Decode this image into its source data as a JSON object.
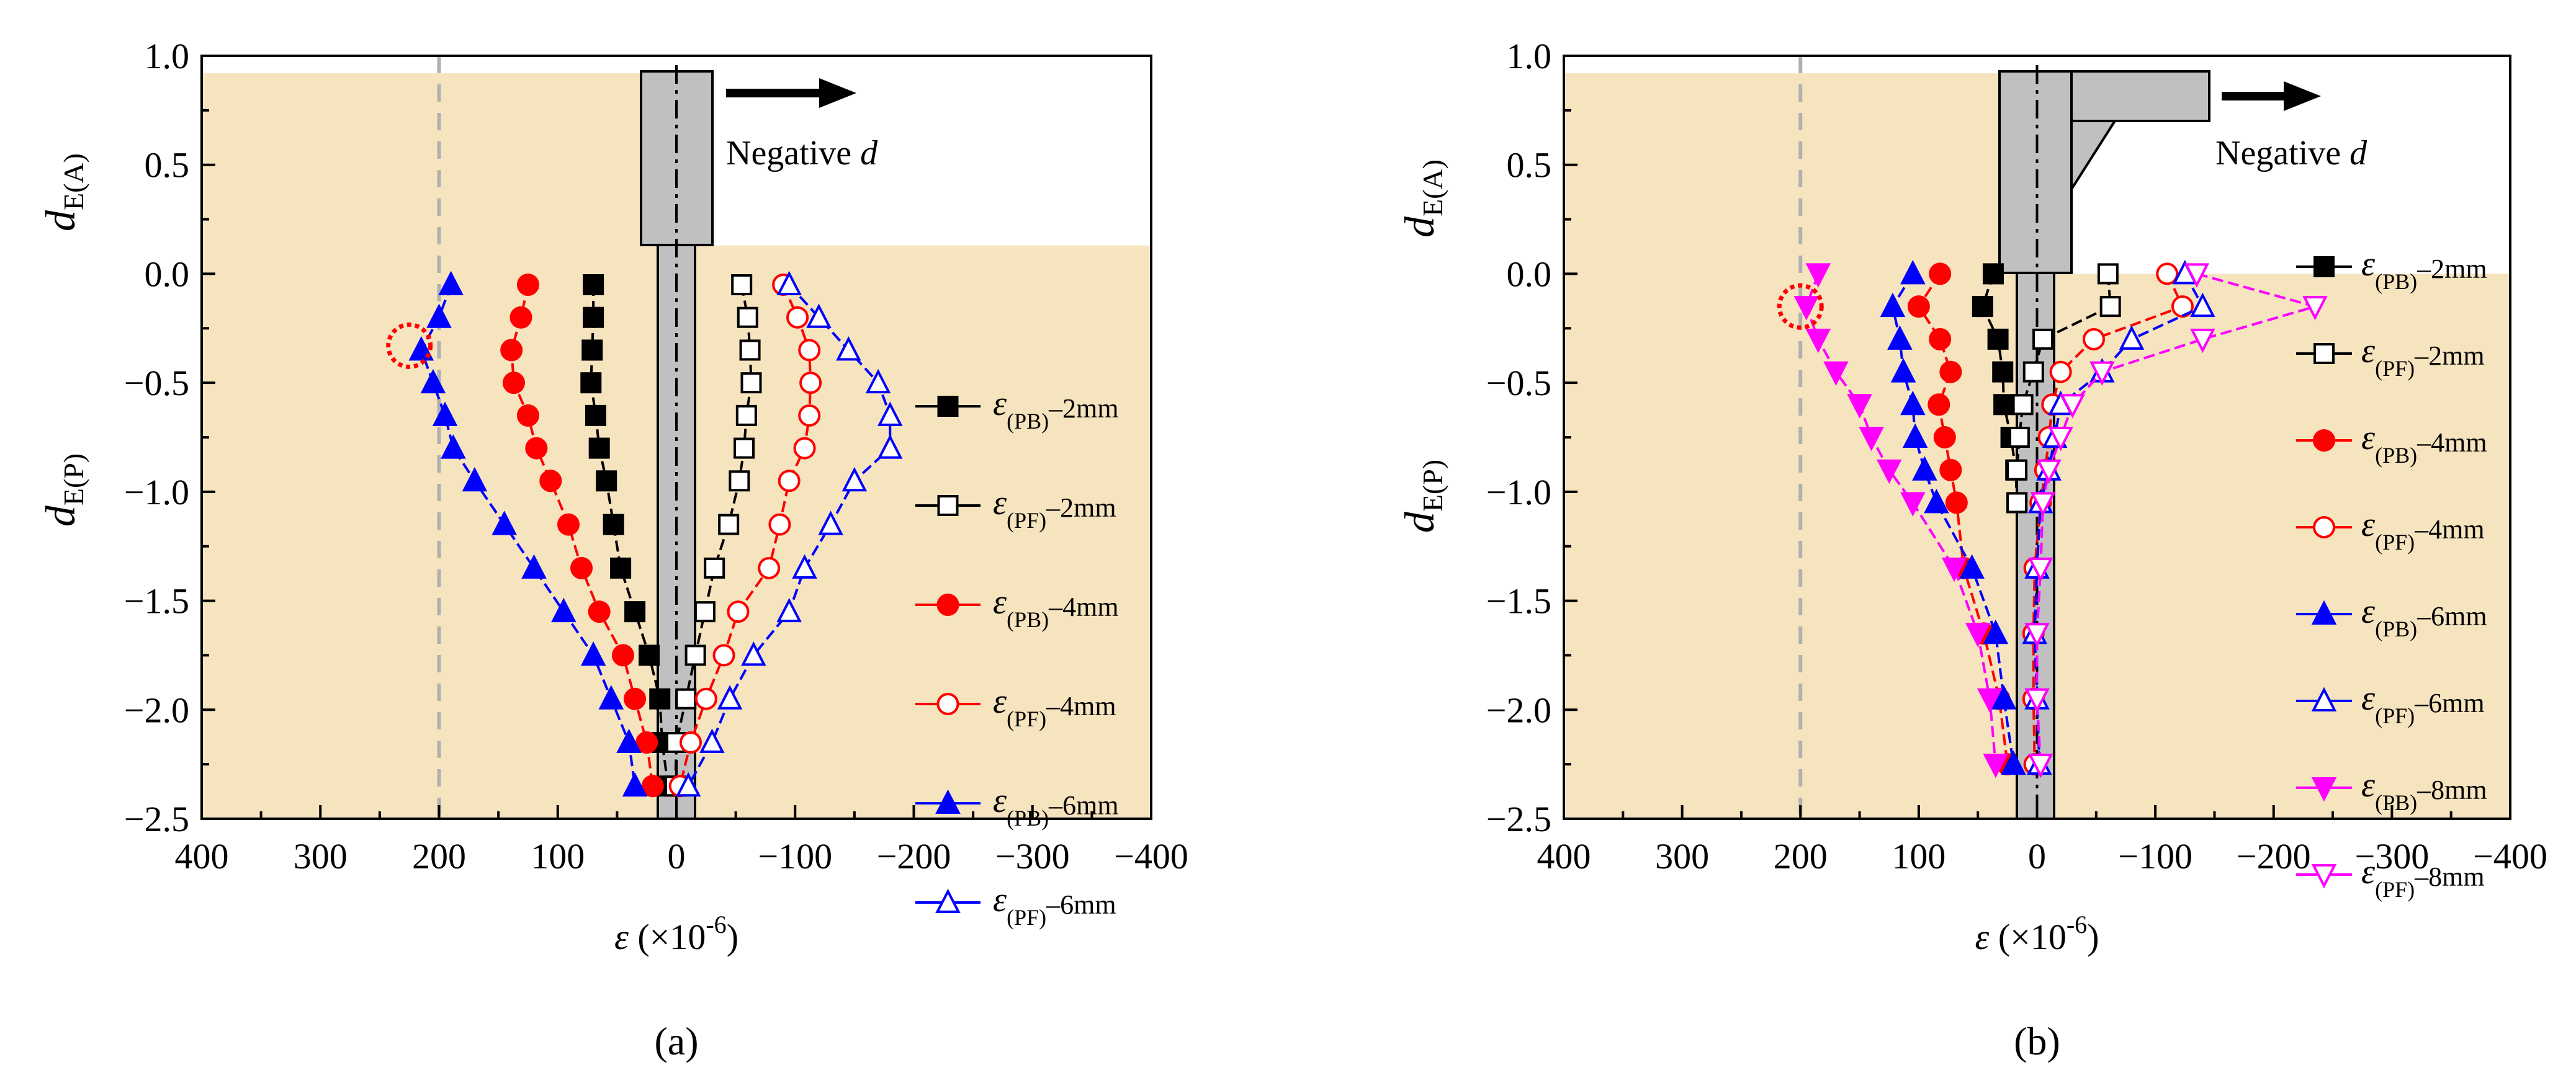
{
  "figure": {
    "panel_labels": [
      "(a)",
      "(b)"
    ],
    "negative_label": "Negative",
    "negative_var": "d",
    "y_label_top_main": "d",
    "y_label_top_sub": "E(A)",
    "y_label_bottom_main": "d",
    "y_label_bottom_sub": "E(P)",
    "x_label": "ε (×10",
    "x_label_exp": "-6",
    "x_label_close": ")",
    "legend_symbol": "ε",
    "colors": {
      "shade": "#f6e4bf",
      "column": "#c0c0c0",
      "threshold_line": "#b0b0b0",
      "circle_marker": "#ff0000"
    }
  },
  "chart_data": [
    {
      "id": "a",
      "type": "scatter",
      "title": "(a)",
      "xlabel": "ε (×10-6)",
      "ylabel_top": "dE(A)",
      "ylabel_bottom": "dE(P)",
      "xlim": [
        400,
        -400
      ],
      "ylim": [
        -2.5,
        1.0
      ],
      "x_ticks": [
        400,
        300,
        200,
        100,
        0,
        -100,
        -200,
        -300,
        -400
      ],
      "x_tick_labels": [
        "400",
        "300",
        "200",
        "100",
        "0",
        "−100",
        "−200",
        "−300",
        "−400"
      ],
      "y_ticks": [
        1.0,
        0.5,
        0.0,
        -0.5,
        -1.0,
        -1.5,
        -2.0,
        -2.5
      ],
      "y_tick_labels": [
        "1.0",
        "0.5",
        "0.0",
        "−0.5",
        "−1.0",
        "−1.5",
        "−2.0",
        "−2.5"
      ],
      "threshold_x": 200,
      "highlight_circle": {
        "x": 225,
        "y": -0.33
      },
      "series": [
        {
          "name": "ε(PB)–2mm",
          "label_sub": "(PB)",
          "label_tail": "–2mm",
          "color": "#000000",
          "marker": "square",
          "filled": true,
          "points": [
            [
              70,
              -0.05
            ],
            [
              70,
              -0.2
            ],
            [
              71,
              -0.35
            ],
            [
              72,
              -0.5
            ],
            [
              68,
              -0.65
            ],
            [
              65,
              -0.8
            ],
            [
              59,
              -0.95
            ],
            [
              53,
              -1.15
            ],
            [
              47,
              -1.35
            ],
            [
              35,
              -1.55
            ],
            [
              23,
              -1.75
            ],
            [
              14,
              -1.95
            ],
            [
              12,
              -2.15
            ],
            [
              7,
              -2.35
            ]
          ]
        },
        {
          "name": "ε(PF)–2mm",
          "label_sub": "(PF)",
          "label_tail": "–2mm",
          "color": "#000000",
          "marker": "square",
          "filled": false,
          "points": [
            [
              -55,
              -0.05
            ],
            [
              -60,
              -0.2
            ],
            [
              -62,
              -0.35
            ],
            [
              -63,
              -0.5
            ],
            [
              -59,
              -0.65
            ],
            [
              -57,
              -0.8
            ],
            [
              -53,
              -0.95
            ],
            [
              -44,
              -1.15
            ],
            [
              -32,
              -1.35
            ],
            [
              -24,
              -1.55
            ],
            [
              -16,
              -1.75
            ],
            [
              -8,
              -1.95
            ],
            [
              0,
              -2.15
            ],
            [
              1,
              -2.35
            ]
          ]
        },
        {
          "name": "ε(PB)–4mm",
          "label_sub": "(PB)",
          "label_tail": "–4mm",
          "color": "#ff0000",
          "marker": "circle",
          "filled": true,
          "points": [
            [
              125,
              -0.05
            ],
            [
              131,
              -0.2
            ],
            [
              139,
              -0.35
            ],
            [
              137,
              -0.5
            ],
            [
              125,
              -0.65
            ],
            [
              118,
              -0.8
            ],
            [
              106,
              -0.95
            ],
            [
              91,
              -1.15
            ],
            [
              80,
              -1.35
            ],
            [
              65,
              -1.55
            ],
            [
              45,
              -1.75
            ],
            [
              35,
              -1.95
            ],
            [
              25,
              -2.15
            ],
            [
              20,
              -2.35
            ]
          ]
        },
        {
          "name": "ε(PF)–4mm",
          "label_sub": "(PF)",
          "label_tail": "–4mm",
          "color": "#ff0000",
          "marker": "circle",
          "filled": false,
          "points": [
            [
              -90,
              -0.05
            ],
            [
              -102,
              -0.2
            ],
            [
              -112,
              -0.35
            ],
            [
              -113,
              -0.5
            ],
            [
              -112,
              -0.65
            ],
            [
              -108,
              -0.8
            ],
            [
              -95,
              -0.95
            ],
            [
              -87,
              -1.15
            ],
            [
              -78,
              -1.35
            ],
            [
              -52,
              -1.55
            ],
            [
              -40,
              -1.75
            ],
            [
              -25,
              -1.95
            ],
            [
              -12,
              -2.15
            ],
            [
              -3,
              -2.35
            ]
          ]
        },
        {
          "name": "ε(PB)–6mm",
          "label_sub": "(PB)",
          "label_tail": "–6mm",
          "color": "#0000ff",
          "marker": "triangle",
          "filled": true,
          "points": [
            [
              190,
              -0.05
            ],
            [
              200,
              -0.2
            ],
            [
              215,
              -0.35
            ],
            [
              205,
              -0.5
            ],
            [
              195,
              -0.65
            ],
            [
              188,
              -0.8
            ],
            [
              170,
              -0.95
            ],
            [
              145,
              -1.15
            ],
            [
              120,
              -1.35
            ],
            [
              95,
              -1.55
            ],
            [
              70,
              -1.75
            ],
            [
              55,
              -1.95
            ],
            [
              40,
              -2.15
            ],
            [
              35,
              -2.35
            ]
          ]
        },
        {
          "name": "ε(PF)–6mm",
          "label_sub": "(PF)",
          "label_tail": "–6mm",
          "color": "#0000ff",
          "marker": "triangle",
          "filled": false,
          "points": [
            [
              -95,
              -0.05
            ],
            [
              -120,
              -0.2
            ],
            [
              -145,
              -0.35
            ],
            [
              -170,
              -0.5
            ],
            [
              -180,
              -0.65
            ],
            [
              -180,
              -0.8
            ],
            [
              -150,
              -0.95
            ],
            [
              -130,
              -1.15
            ],
            [
              -108,
              -1.35
            ],
            [
              -95,
              -1.55
            ],
            [
              -65,
              -1.75
            ],
            [
              -45,
              -1.95
            ],
            [
              -30,
              -2.15
            ],
            [
              -10,
              -2.35
            ]
          ]
        }
      ]
    },
    {
      "id": "b",
      "type": "scatter",
      "title": "(b)",
      "xlabel": "ε (×10-6)",
      "ylabel_top": "dE(A)",
      "ylabel_bottom": "dE(P)",
      "xlim": [
        400,
        -400
      ],
      "ylim": [
        -2.5,
        1.0
      ],
      "x_ticks": [
        400,
        300,
        200,
        100,
        0,
        -100,
        -200,
        -300,
        -400
      ],
      "x_tick_labels": [
        "400",
        "300",
        "200",
        "100",
        "0",
        "−100",
        "−200",
        "−300",
        "−400"
      ],
      "y_ticks": [
        1.0,
        0.5,
        0.0,
        -0.5,
        -1.0,
        -1.5,
        -2.0,
        -2.5
      ],
      "y_tick_labels": [
        "1.0",
        "0.5",
        "0.0",
        "−0.5",
        "−1.0",
        "−1.5",
        "−2.0",
        "−2.5"
      ],
      "threshold_x": 200,
      "highlight_circle": {
        "x": 200,
        "y": -0.15
      },
      "series": [
        {
          "name": "ε(PB)–2mm",
          "label_sub": "(PB)",
          "label_tail": "–2mm",
          "color": "#000000",
          "marker": "square",
          "filled": true,
          "points": [
            [
              37,
              0.0
            ],
            [
              46,
              -0.15
            ],
            [
              33,
              -0.3
            ],
            [
              29,
              -0.45
            ],
            [
              28,
              -0.6
            ],
            [
              22,
              -0.75
            ],
            [
              18,
              -0.9
            ],
            [
              17,
              -1.05
            ]
          ]
        },
        {
          "name": "ε(PF)–2mm",
          "label_sub": "(PF)",
          "label_tail": "–2mm",
          "color": "#000000",
          "marker": "square",
          "filled": false,
          "points": [
            [
              -60,
              0.0
            ],
            [
              -62,
              -0.15
            ],
            [
              -5,
              -0.3
            ],
            [
              3,
              -0.45
            ],
            [
              12,
              -0.6
            ],
            [
              15,
              -0.75
            ],
            [
              17,
              -0.9
            ],
            [
              17,
              -1.05
            ]
          ]
        },
        {
          "name": "ε(PB)–4mm",
          "label_sub": "(PB)",
          "label_tail": "–4mm",
          "color": "#ff0000",
          "marker": "circle",
          "filled": true,
          "points": [
            [
              82,
              0.0
            ],
            [
              100,
              -0.15
            ],
            [
              82,
              -0.3
            ],
            [
              73,
              -0.45
            ],
            [
              83,
              -0.6
            ],
            [
              78,
              -0.75
            ],
            [
              73,
              -0.9
            ],
            [
              68,
              -1.05
            ],
            [
              62,
              -1.35
            ],
            [
              45,
              -1.65
            ],
            [
              32,
              -1.95
            ],
            [
              25,
              -2.25
            ]
          ]
        },
        {
          "name": "ε(PF)–4mm",
          "label_sub": "(PF)",
          "label_tail": "–4mm",
          "color": "#ff0000",
          "marker": "circle",
          "filled": false,
          "points": [
            [
              -110,
              0.0
            ],
            [
              -123,
              -0.15
            ],
            [
              -48,
              -0.3
            ],
            [
              -20,
              -0.45
            ],
            [
              -13,
              -0.6
            ],
            [
              -10,
              -0.75
            ],
            [
              -7,
              -0.9
            ],
            [
              -3,
              -1.05
            ],
            [
              2,
              -1.35
            ],
            [
              3,
              -1.65
            ],
            [
              3,
              -1.95
            ],
            [
              2,
              -2.25
            ]
          ]
        },
        {
          "name": "ε(PB)–6mm",
          "label_sub": "(PB)",
          "label_tail": "–6mm",
          "color": "#0000ff",
          "marker": "triangle",
          "filled": true,
          "points": [
            [
              105,
              0.0
            ],
            [
              122,
              -0.15
            ],
            [
              116,
              -0.3
            ],
            [
              113,
              -0.45
            ],
            [
              105,
              -0.6
            ],
            [
              103,
              -0.75
            ],
            [
              95,
              -0.9
            ],
            [
              85,
              -1.05
            ],
            [
              55,
              -1.35
            ],
            [
              35,
              -1.65
            ],
            [
              28,
              -1.95
            ],
            [
              20,
              -2.25
            ]
          ]
        },
        {
          "name": "ε(PF)–6mm",
          "label_sub": "(PF)",
          "label_tail": "–6mm",
          "color": "#0000ff",
          "marker": "triangle",
          "filled": false,
          "points": [
            [
              -125,
              0.0
            ],
            [
              -140,
              -0.15
            ],
            [
              -80,
              -0.3
            ],
            [
              -55,
              -0.45
            ],
            [
              -20,
              -0.6
            ],
            [
              -15,
              -0.75
            ],
            [
              -10,
              -0.9
            ],
            [
              -3,
              -1.05
            ],
            [
              0,
              -1.35
            ],
            [
              2,
              -1.65
            ],
            [
              0,
              -1.95
            ],
            [
              -2,
              -2.25
            ]
          ]
        },
        {
          "name": "ε(PB)–8mm",
          "label_sub": "(PB)",
          "label_tail": "–8mm",
          "color": "#ff00ff",
          "marker": "triangle-down",
          "filled": true,
          "points": [
            [
              185,
              0.0
            ],
            [
              195,
              -0.15
            ],
            [
              185,
              -0.3
            ],
            [
              170,
              -0.45
            ],
            [
              150,
              -0.6
            ],
            [
              140,
              -0.75
            ],
            [
              125,
              -0.9
            ],
            [
              105,
              -1.05
            ],
            [
              70,
              -1.35
            ],
            [
              50,
              -1.65
            ],
            [
              40,
              -1.95
            ],
            [
              35,
              -2.25
            ]
          ]
        },
        {
          "name": "ε(PF)–8mm",
          "label_sub": "(PF)",
          "label_tail": "–8mm",
          "color": "#ff00ff",
          "marker": "triangle-down",
          "filled": false,
          "points": [
            [
              -135,
              0.0
            ],
            [
              -235,
              -0.15
            ],
            [
              -140,
              -0.3
            ],
            [
              -55,
              -0.45
            ],
            [
              -30,
              -0.6
            ],
            [
              -20,
              -0.75
            ],
            [
              -10,
              -0.9
            ],
            [
              -5,
              -1.05
            ],
            [
              -3,
              -1.35
            ],
            [
              0,
              -1.65
            ],
            [
              0,
              -1.95
            ],
            [
              -3,
              -2.25
            ]
          ]
        }
      ]
    }
  ]
}
